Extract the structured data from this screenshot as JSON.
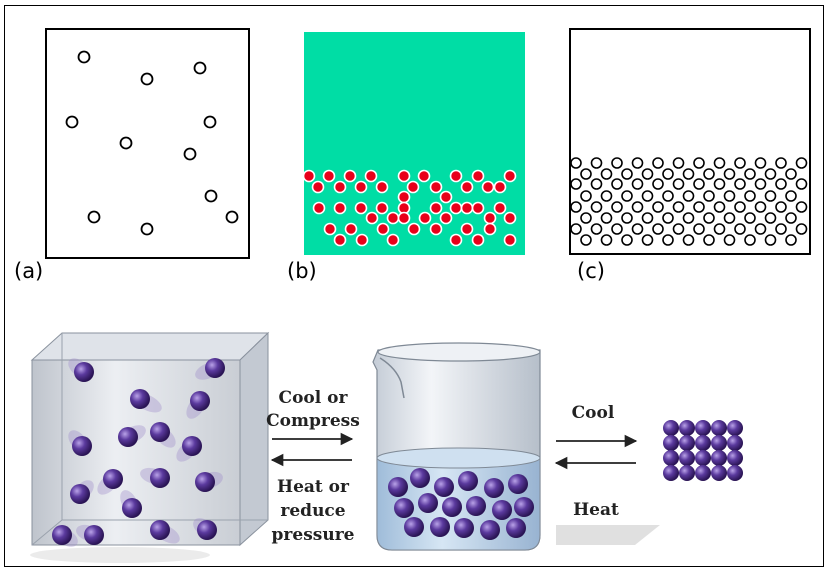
{
  "panels": {
    "a": {
      "label": "(a)",
      "state": "gas",
      "particle_style": "hollow-circle"
    },
    "b": {
      "label": "(b)",
      "state": "liquid",
      "background": "#00dda5",
      "particle_color": "#e8001a"
    },
    "c": {
      "label": "(c)",
      "state": "liquid",
      "particle_style": "hollow-circle"
    }
  },
  "arrows": {
    "left": {
      "forward_line1": "Cool or",
      "forward_line2": "Compress",
      "reverse_line1": "Heat or",
      "reverse_line2": "reduce",
      "reverse_line3": "pressure"
    },
    "right": {
      "forward": "Cool",
      "reverse": "Heat"
    }
  },
  "colors": {
    "molecule": "#4a2a88",
    "molecule_light": "#9b7fd4",
    "box": "#c9ced6",
    "liquid": "#b9d3ea"
  }
}
